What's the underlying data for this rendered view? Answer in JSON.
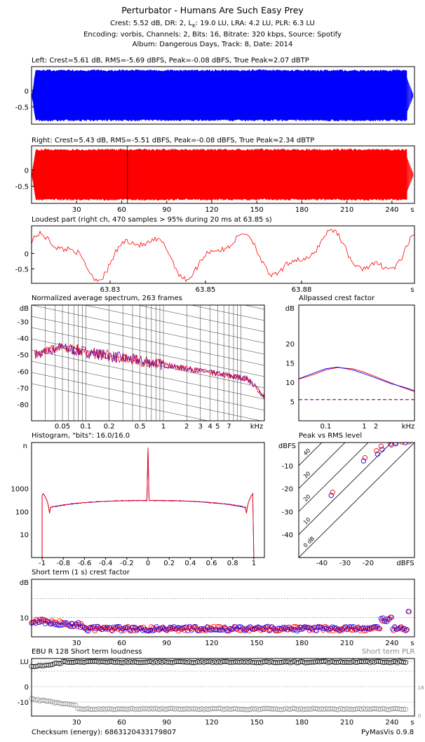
{
  "header": {
    "title": "Perturbator - Humans Are Such Easy Prey",
    "stats_line": "Crest: 5.52 dB,  DR: 2,  L$_K$: 19.0 LU,  LRA: 4.2 LU,  PLR: 6.3 LU",
    "encoding_line": "Encoding: vorbis,  Channels: 2,  Bits: 16,  Bitrate: 320 kbps,  Source: Spotify",
    "album_line": "Album: Dangerous Days,  Track: 8,  Date: 2014"
  },
  "footer": {
    "checksum": "Checksum (energy): 6863120433179807",
    "version": "PyMasVis 0.9.8"
  },
  "colors": {
    "left": "#0000ff",
    "right": "#ff0000",
    "mix": "#8b1a8b",
    "grid": "#888888"
  },
  "chart_data": [
    {
      "id": "left",
      "type": "area",
      "title": "Left: Crest=5.61 dB, RMS=-5.69 dBFS, Peak=-0.08 dBFS, True Peak≈2.07 dBTP",
      "yticks": [
        "0",
        "-0.5"
      ],
      "ylim": [
        -1,
        1
      ],
      "xlim": [
        0,
        255
      ],
      "end_s": 250,
      "envelope": 0.95
    },
    {
      "id": "right",
      "type": "area",
      "title": "Right: Crest=5.43 dB, RMS=-5.51 dBFS, Peak=-0.08 dBFS, True Peak≈2.34 dBTP",
      "yticks": [
        "0",
        "-0.5"
      ],
      "ylim": [
        -1,
        1
      ],
      "xlim": [
        0,
        255
      ],
      "xticks": [
        30,
        60,
        90,
        120,
        150,
        180,
        210,
        240
      ],
      "xunit": "s",
      "marker_s": 63.85,
      "end_s": 250,
      "envelope": 0.95
    },
    {
      "id": "loudest",
      "type": "line",
      "title": "Loudest part (right ch, 470 samples > 95% during 20 ms at 63.85 s)",
      "yticks": [
        "0",
        "-0.5"
      ],
      "ylim": [
        -1,
        1
      ],
      "xticks": [
        "63.83",
        "63.85",
        "63.88"
      ],
      "xunit": "s"
    },
    {
      "id": "spectrum",
      "type": "line",
      "title": "Normalized average spectrum, 263 frames",
      "ylabel": "dB",
      "yticks": [
        -30,
        -40,
        -50,
        -60,
        -70,
        -80
      ],
      "ylim": [
        -90,
        -20
      ],
      "xticks": [
        "0.05",
        "0.1",
        "0.2",
        "0.5",
        "1",
        "2",
        "3",
        "4",
        "5",
        "7"
      ],
      "xunit": "kHz",
      "xlim": [
        0.02,
        20
      ],
      "log_x": true
    },
    {
      "id": "allpass",
      "type": "line",
      "title": "Allpassed crest factor",
      "ylabel": "dB",
      "yticks": [
        5,
        10,
        15,
        20
      ],
      "ylim": [
        0,
        30
      ],
      "xticks": [
        "0.1",
        "1",
        "2"
      ],
      "xunit": "kHz",
      "log_x": true,
      "x": [
        0.02,
        0.05,
        0.1,
        0.2,
        0.5,
        1,
        2,
        5,
        10,
        20
      ],
      "series": [
        {
          "values": [
            10.8,
            12.0,
            13.2,
            13.8,
            13.5,
            12.6,
            11.4,
            9.8,
            8.6,
            7.6
          ]
        },
        {
          "values": [
            10.9,
            12.4,
            13.5,
            13.9,
            13.2,
            12.2,
            11.1,
            9.6,
            8.8,
            7.8
          ]
        }
      ],
      "reference": 5.5
    },
    {
      "id": "histogram",
      "type": "line",
      "title": "Histogram, \"bits\": 16.0/16.0",
      "ylabel": "n",
      "yticks": [
        "1000",
        "100",
        "10"
      ],
      "log_y": true,
      "xticks": [
        "-1",
        "-0.8",
        "-0.6",
        "-0.4",
        "-0.2",
        "0",
        "0.2",
        "0.4",
        "0.6",
        "0.8",
        "1"
      ],
      "xlim": [
        -1.1,
        1.1
      ]
    },
    {
      "id": "peak_rms",
      "type": "scatter",
      "title": "Peak vs RMS level",
      "xlabel": "dBFS",
      "ylabel": "dBFS",
      "xticks": [
        -40,
        -30,
        -20
      ],
      "yticks": [
        -10,
        -20,
        -30,
        -40
      ],
      "xlim": [
        -50,
        0
      ],
      "ylim": [
        -50,
        0
      ],
      "diagonals": [
        "40",
        "30",
        "20",
        "10",
        "0 dB"
      ],
      "blue": [
        [
          -36,
          -23
        ],
        [
          -22,
          -8
        ],
        [
          -16,
          -5
        ],
        [
          -14,
          -3
        ],
        [
          -10,
          -1
        ],
        [
          -8,
          -0.5
        ],
        [
          -4,
          -0.1
        ]
      ],
      "red": [
        [
          -36,
          -22
        ],
        [
          -22,
          -7
        ],
        [
          -17,
          -4
        ],
        [
          -15,
          -2
        ],
        [
          -11,
          -1
        ],
        [
          -9,
          -0.6
        ],
        [
          -6,
          -0.2
        ],
        [
          -3,
          -0.1
        ]
      ]
    },
    {
      "id": "st_crest",
      "type": "scatter",
      "title": "Short term (1 s) crest factor",
      "ylabel": "dB",
      "yticks": [
        10
      ],
      "ylim": [
        5,
        20
      ],
      "xlim": [
        0,
        255
      ],
      "xticks": [
        30,
        60,
        90,
        120,
        150,
        180,
        210,
        240
      ],
      "xunit": "s"
    },
    {
      "id": "st_loudness",
      "type": "scatter",
      "title": "EBU R 128 Short term loudness",
      "legend_text": "Short term PLR",
      "ylabel": "LU",
      "yticks": [
        "0",
        "-10"
      ],
      "right_ticks": [
        "18",
        "0"
      ],
      "xlim": [
        0,
        255
      ],
      "xticks": [
        30,
        60,
        90,
        120,
        150,
        180,
        210,
        240
      ],
      "xunit": "s"
    }
  ]
}
